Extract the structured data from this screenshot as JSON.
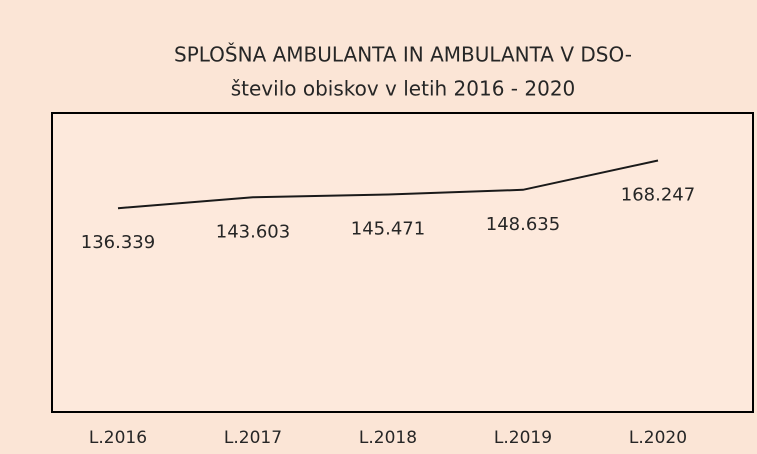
{
  "chart_data": {
    "type": "line",
    "title": "SPLOŠNA AMBULANTA IN AMBULANTA V DSO-",
    "subtitle": "število obiskov v letih 2016 - 2020",
    "categories": [
      "L.2016",
      "L.2017",
      "L.2018",
      "L.2019",
      "L.2020"
    ],
    "values": [
      136339,
      143603,
      145471,
      148635,
      168247
    ],
    "value_labels": [
      "136.339",
      "143.603",
      "145.471",
      "148.635",
      "168.247"
    ],
    "color": "#1a1a1a",
    "ylim": [
      0,
      200000
    ]
  }
}
